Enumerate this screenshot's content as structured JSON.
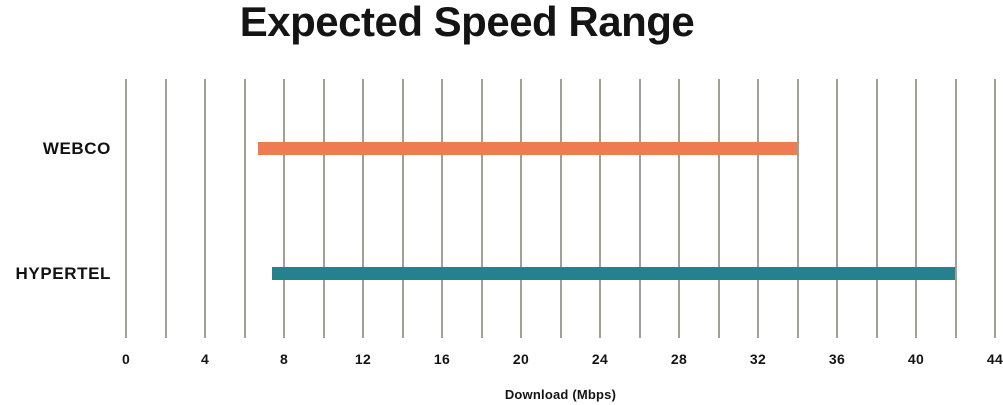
{
  "page": {
    "background": "#ffffff"
  },
  "chart_data": {
    "type": "bar",
    "variant": "horizontal-range",
    "title": "Expected Speed Range",
    "xlabel": "Download (Mbps)",
    "categories": [
      "WEBCO",
      "HYPERTEL"
    ],
    "series": [
      {
        "name": "Expected speed range",
        "ranges": [
          {
            "category": "WEBCO",
            "min": 6.7,
            "max": 34
          },
          {
            "category": "HYPERTEL",
            "min": 7.4,
            "max": 42
          }
        ]
      }
    ],
    "bar_colors": {
      "WEBCO": "#ef7b53",
      "HYPERTEL": "#26818f"
    },
    "xlim": [
      0,
      44
    ],
    "x_major_ticks": [
      0,
      4,
      8,
      12,
      16,
      20,
      24,
      28,
      32,
      36,
      40,
      44
    ],
    "x_gridline_step": 2,
    "grid": true,
    "gridline_color": "#a29e98",
    "legend": "none",
    "text_color": "#141414"
  }
}
